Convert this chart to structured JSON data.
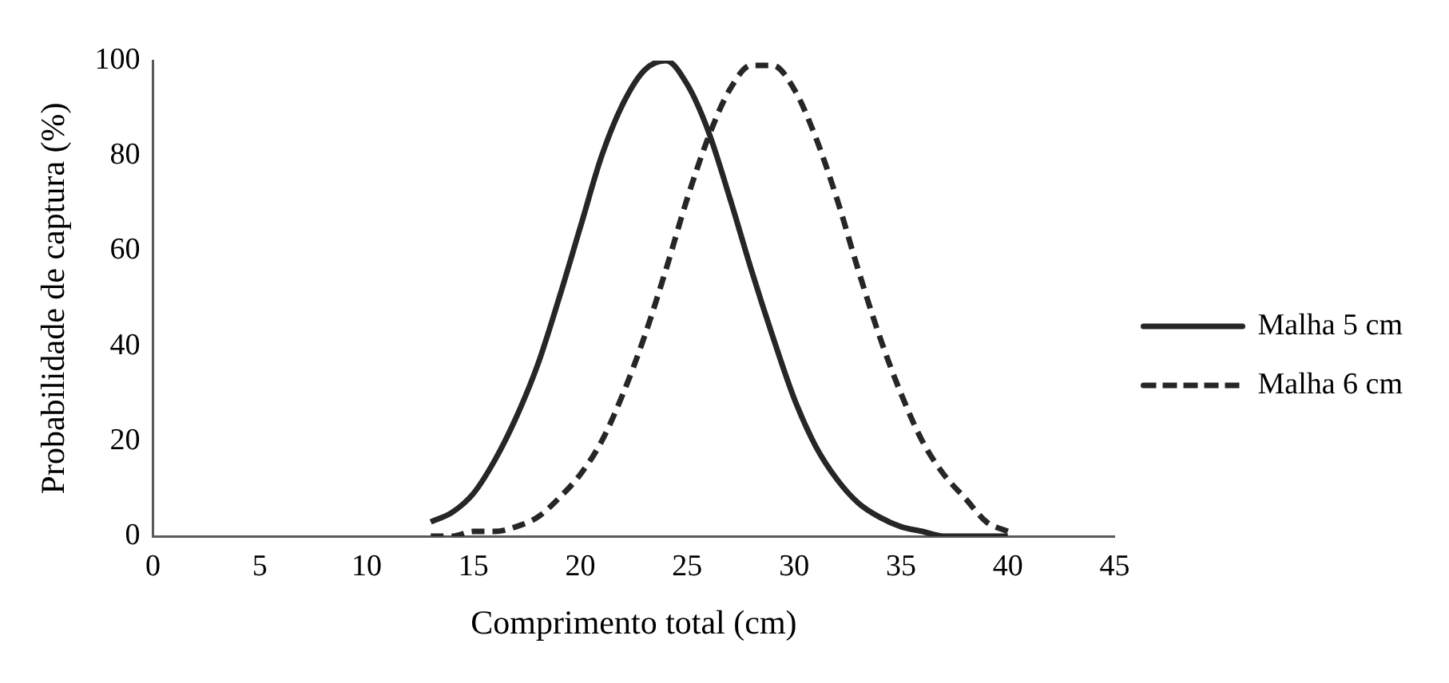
{
  "chart_data": {
    "type": "line",
    "xlabel": "Comprimento total (cm)",
    "ylabel": "Probabilidade de captura (%)",
    "x": [
      13,
      14,
      15,
      16,
      17,
      18,
      19,
      20,
      21,
      22,
      23,
      24,
      25,
      26,
      27,
      28,
      29,
      30,
      31,
      32,
      33,
      34,
      35,
      36,
      37,
      38,
      39,
      40
    ],
    "series": [
      {
        "name": "Malha 5 cm",
        "color": "#262626",
        "line_style": "solid",
        "values": [
          3,
          5,
          9,
          16,
          25,
          36,
          50,
          65,
          80,
          91,
          98,
          100,
          95,
          85,
          71,
          56,
          42,
          29,
          19,
          12,
          7,
          4,
          2,
          1,
          0,
          0,
          0,
          0
        ]
      },
      {
        "name": "Malha 6 cm",
        "color": "#262626",
        "line_style": "dashed",
        "values": [
          0,
          0,
          1,
          1,
          2,
          4,
          8,
          13,
          20,
          30,
          42,
          56,
          71,
          84,
          94,
          99,
          99,
          94,
          84,
          71,
          56,
          42,
          30,
          20,
          13,
          8,
          3,
          1
        ]
      }
    ],
    "xlim": [
      0,
      45
    ],
    "xticks": [
      0,
      5,
      10,
      15,
      20,
      25,
      30,
      35,
      40,
      45
    ],
    "ylim": [
      0,
      100
    ],
    "yticks": [
      0,
      20,
      40,
      60,
      80,
      100
    ],
    "grid": false,
    "legend": "right",
    "marker": "none"
  }
}
